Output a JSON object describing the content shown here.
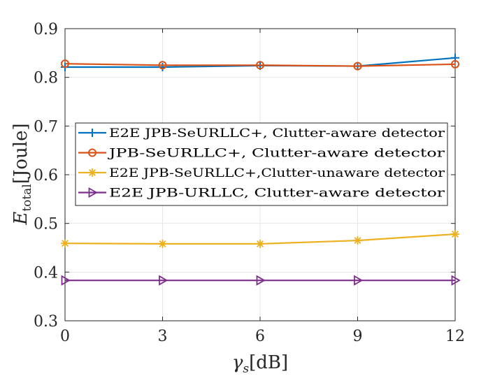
{
  "chart_data": {
    "type": "line",
    "title": "",
    "xlabel_main": "γ",
    "xlabel_sub": "s",
    "xlabel_unit": "[dB]",
    "ylabel_main": "E",
    "ylabel_sub": "total",
    "ylabel_unit": "[Joule]",
    "x": [
      0,
      3,
      6,
      9,
      12
    ],
    "xlim": [
      0,
      12
    ],
    "ylim": [
      0.3,
      0.9
    ],
    "xticks": [
      0,
      3,
      6,
      9,
      12
    ],
    "xtick_labels": [
      "0",
      "3",
      "6",
      "9",
      "12"
    ],
    "yticks": [
      0.3,
      0.4,
      0.5,
      0.6,
      0.7,
      0.8,
      0.9
    ],
    "ytick_labels": [
      "0.3",
      "0.4",
      "0.5",
      "0.6",
      "0.7",
      "0.8",
      "0.9"
    ],
    "grid": true,
    "legend_position": "center-left",
    "series": [
      {
        "name": "E2E JPB-SeURLLC+, Clutter-aware detector",
        "color": "#0072BD",
        "marker": "plus",
        "values": [
          0.821,
          0.821,
          0.824,
          0.823,
          0.84
        ]
      },
      {
        "name": "JPB-SeURLLC+, Clutter-aware detector",
        "color": "#D95319",
        "marker": "circle",
        "values": [
          0.828,
          0.825,
          0.825,
          0.823,
          0.827
        ]
      },
      {
        "name": "E2E JPB-SeURLLC+,Clutter-unaware detector",
        "color": "#EDB120",
        "marker": "asterisk",
        "values": [
          0.459,
          0.458,
          0.458,
          0.465,
          0.478
        ]
      },
      {
        "name": "E2E JPB-URLLC, Clutter-aware detector",
        "color": "#7E2F8E",
        "marker": "triangle-right",
        "values": [
          0.383,
          0.383,
          0.383,
          0.383,
          0.383
        ]
      }
    ]
  }
}
